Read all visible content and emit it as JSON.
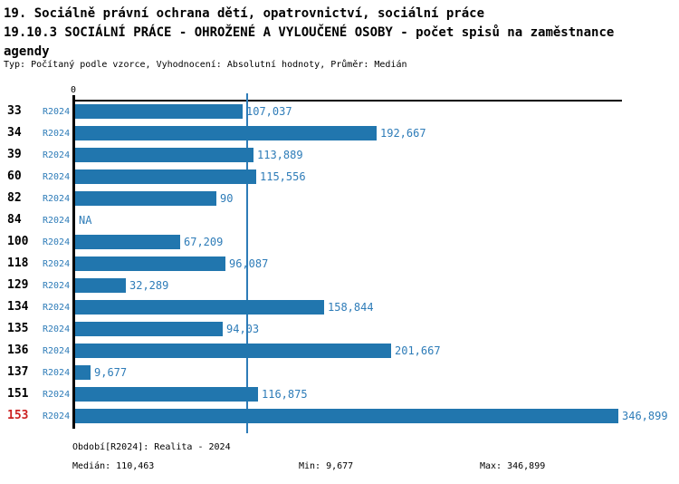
{
  "header": {
    "title_lines": [
      "19. Sociálně právní ochrana dětí, opatrovnictví, sociální práce",
      "19.10.3 SOCIÁLNÍ PRÁCE - OHROŽENÉ A VYLOUČENÉ OSOBY - počet spisů na zaměstnance",
      "agendy"
    ],
    "subtitle": "Typ: Počítaný podle vzorce, Vyhodnocení: Absolutní hodnoty, Průměr: Medián"
  },
  "chart_data": {
    "type": "bar",
    "orientation": "horizontal",
    "title": "19.10.3 SOCIÁLNÍ PRÁCE - OHROŽENÉ A VYLOUČENÉ OSOBY - počet spisů na zaměstnance agendy",
    "axis_zero_label": "0",
    "period_label": "R2024",
    "categories": [
      "33",
      "34",
      "39",
      "60",
      "82",
      "84",
      "100",
      "118",
      "129",
      "134",
      "135",
      "136",
      "137",
      "151",
      "153"
    ],
    "values": [
      107.037,
      192.667,
      113.889,
      115.556,
      90,
      null,
      67.209,
      96.087,
      32.289,
      158.844,
      94.03,
      201.667,
      9.677,
      116.875,
      346.899
    ],
    "value_labels": [
      "107,037",
      "192,667",
      "113,889",
      "115,556",
      "90",
      "NA",
      "67,209",
      "96,087",
      "32,289",
      "158,844",
      "94,03",
      "201,667",
      "9,677",
      "116,875",
      "346,899"
    ],
    "na_label": "NA",
    "highlighted_category": "153",
    "median": 110.463,
    "min": 9.677,
    "max": 346.899,
    "xlim": [
      0,
      346.899
    ],
    "grid": false,
    "legend": false,
    "bar_color": "#2176ae",
    "median_line_color": "#2e7cb8",
    "text_color": "#2e7cb8",
    "highlight_color": "#cc2222"
  },
  "footer": {
    "period_info": "Období[R2024]: Realita - 2024",
    "median_label": "Medián: 110,463",
    "min_label": "Min: 9,677",
    "max_label": "Max: 346,899"
  }
}
